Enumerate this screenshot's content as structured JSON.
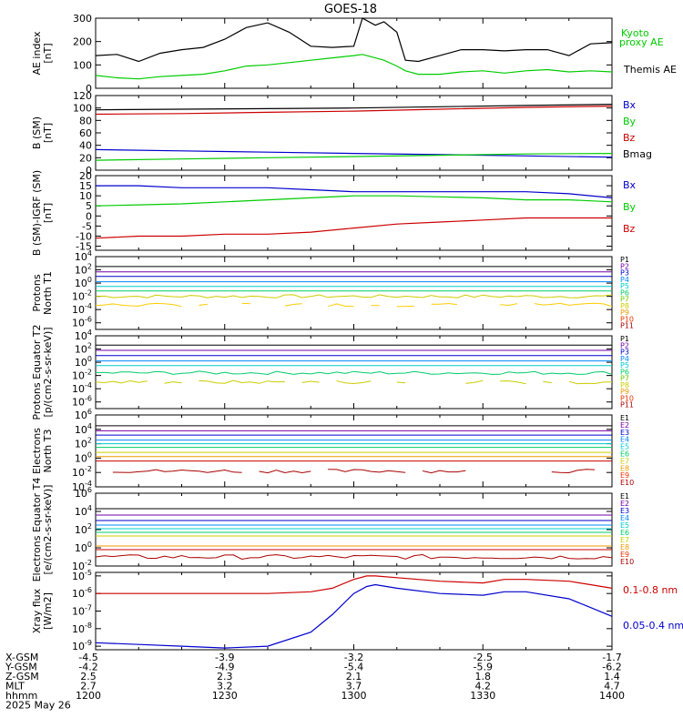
{
  "title": "GOES-18",
  "date_label": "2025 May 26",
  "footer": {
    "rows": [
      {
        "label": "X-GSM",
        "values": [
          "-4.5",
          "-3.9",
          "-3.2",
          "-2.5",
          "-1.7"
        ]
      },
      {
        "label": "Y-GSM",
        "values": [
          "-4.2",
          "-4.9",
          "-5.4",
          "-5.9",
          "-6.2"
        ]
      },
      {
        "label": "Z-GSM",
        "values": [
          "2.5",
          "2.3",
          "2.1",
          "1.8",
          "1.4"
        ]
      },
      {
        "label": "MLT",
        "values": [
          "2.7",
          "3.2",
          "3.7",
          "4.2",
          "4.7"
        ]
      },
      {
        "label": "hhmm",
        "values": [
          "1200",
          "1230",
          "1300",
          "1330",
          "1400"
        ]
      }
    ]
  },
  "chart_data": [
    {
      "type": "line",
      "ylabel": "AE index [nT]",
      "ylim": [
        0,
        300
      ],
      "yticks": [
        "0",
        "100",
        "200",
        "300"
      ],
      "legend": [
        {
          "label": "Kyoto",
          "color": "#00cc00"
        },
        {
          "label": "proxy AE",
          "color": "#00cc00"
        },
        {
          "label": "Themis AE",
          "color": "#000000"
        }
      ],
      "x_minutes": [
        0,
        5,
        10,
        15,
        20,
        25,
        30,
        35,
        40,
        45,
        50,
        55,
        60,
        62,
        65,
        67,
        70,
        72,
        75,
        80,
        85,
        90,
        95,
        100,
        105,
        110,
        115,
        120
      ],
      "series": [
        {
          "name": "Themis AE",
          "color": "#000000",
          "values": [
            140,
            145,
            115,
            150,
            165,
            175,
            210,
            260,
            280,
            240,
            180,
            175,
            180,
            300,
            270,
            285,
            240,
            120,
            115,
            140,
            165,
            165,
            160,
            165,
            165,
            140,
            190,
            195
          ]
        },
        {
          "name": "Kyoto proxy AE",
          "color": "#00cc00",
          "values": [
            55,
            45,
            40,
            50,
            55,
            60,
            75,
            95,
            100,
            110,
            120,
            130,
            140,
            145,
            130,
            120,
            95,
            75,
            60,
            60,
            70,
            75,
            65,
            75,
            80,
            70,
            75,
            70
          ]
        }
      ]
    },
    {
      "type": "line",
      "ylabel": "B (SM) [nT]",
      "ylim": [
        0,
        120
      ],
      "yticks": [
        "0",
        "20",
        "40",
        "60",
        "80",
        "100",
        "120"
      ],
      "legend": [
        {
          "label": "Bx",
          "color": "#0000cc"
        },
        {
          "label": "By",
          "color": "#00cc00"
        },
        {
          "label": "Bz",
          "color": "#cc0000"
        },
        {
          "label": "Bmag",
          "color": "#000000"
        }
      ],
      "x_minutes": [
        0,
        20,
        40,
        60,
        80,
        100,
        120
      ],
      "series": [
        {
          "name": "Bmag",
          "color": "#000000",
          "values": [
            97,
            98,
            99,
            100,
            102,
            104,
            106
          ]
        },
        {
          "name": "Bz",
          "color": "#cc0000",
          "values": [
            90,
            91,
            93,
            95,
            98,
            101,
            103
          ]
        },
        {
          "name": "Bx",
          "color": "#0000cc",
          "values": [
            33,
            31,
            29,
            27,
            25,
            23,
            21
          ]
        },
        {
          "name": "By",
          "color": "#00cc00",
          "values": [
            16,
            18,
            20,
            22,
            24,
            26,
            27
          ]
        }
      ]
    },
    {
      "type": "line",
      "ylabel": "B (SM)-IGRF (SM) [nT]",
      "ylim": [
        -17,
        20
      ],
      "yticks": [
        "-15",
        "-10",
        "-5",
        "0",
        "5",
        "10",
        "15",
        "20"
      ],
      "legend": [
        {
          "label": "Bx",
          "color": "#0000cc"
        },
        {
          "label": "By",
          "color": "#00cc00"
        },
        {
          "label": "Bz",
          "color": "#cc0000"
        }
      ],
      "x_minutes": [
        0,
        10,
        20,
        30,
        40,
        50,
        60,
        70,
        80,
        90,
        100,
        110,
        120
      ],
      "series": [
        {
          "name": "Bx",
          "color": "#0000cc",
          "values": [
            15,
            15,
            14,
            14,
            14,
            13,
            12,
            12,
            12,
            12,
            12,
            11,
            9
          ]
        },
        {
          "name": "By",
          "color": "#00cc00",
          "values": [
            5,
            5.5,
            6,
            7,
            8,
            9,
            10,
            10,
            9.5,
            9,
            8,
            8,
            7
          ]
        },
        {
          "name": "Bz",
          "color": "#cc0000",
          "values": [
            -11,
            -10,
            -10,
            -9,
            -9,
            -8,
            -6,
            -4,
            -3,
            -2,
            -1,
            -1,
            -1
          ]
        }
      ]
    },
    {
      "type": "line",
      "ylabel": "Protons North T1",
      "yscale": "log",
      "ylim_exp": [
        -7,
        4
      ],
      "yticks": [
        "10-6",
        "10-4",
        "10-2",
        "100",
        "102",
        "104"
      ],
      "legend": [
        {
          "label": "P1",
          "color": "#000000"
        },
        {
          "label": "P2",
          "color": "#7700aa"
        },
        {
          "label": "P3",
          "color": "#0000cc"
        },
        {
          "label": "P4",
          "color": "#0088ff"
        },
        {
          "label": "P5",
          "color": "#00cccc"
        },
        {
          "label": "P6",
          "color": "#00cc66"
        },
        {
          "label": "P7",
          "color": "#66cc00"
        },
        {
          "label": "P8",
          "color": "#cccc00"
        },
        {
          "label": "P9",
          "color": "#ee9900"
        },
        {
          "label": "P10",
          "color": "#ee3300"
        },
        {
          "label": "P11",
          "color": "#aa0000"
        }
      ],
      "series_log": [
        {
          "name": "P1",
          "color": "#000000",
          "log": 2.5
        },
        {
          "name": "P2",
          "color": "#7700aa",
          "log": 1.7
        },
        {
          "name": "P3",
          "color": "#0000cc",
          "log": 1.0
        },
        {
          "name": "P4",
          "color": "#0088ff",
          "log": 0.2
        },
        {
          "name": "P5",
          "color": "#00cccc",
          "log": -0.5
        },
        {
          "name": "P6",
          "color": "#00cc66",
          "log": -1.2
        },
        {
          "name": "P7",
          "color": "#cccc00",
          "log": -2.0,
          "noisy": true
        },
        {
          "name": "P8",
          "color": "#ffcc00",
          "log": -3.3,
          "noisy": true,
          "gaps": true
        }
      ]
    },
    {
      "type": "line",
      "ylabel": "Protons Equator T2 [p/(cm2-s-sr-keV)]",
      "yscale": "log",
      "ylim_exp": [
        -7,
        4
      ],
      "yticks": [
        "10-6",
        "10-4",
        "10-2",
        "100",
        "102",
        "104"
      ],
      "legend": [
        {
          "label": "P1",
          "color": "#000000"
        },
        {
          "label": "P2",
          "color": "#7700aa"
        },
        {
          "label": "P3",
          "color": "#0000cc"
        },
        {
          "label": "P4",
          "color": "#0088ff"
        },
        {
          "label": "P5",
          "color": "#00cccc"
        },
        {
          "label": "P6",
          "color": "#00cc66"
        },
        {
          "label": "P7",
          "color": "#66cc00"
        },
        {
          "label": "P8",
          "color": "#cccc00"
        },
        {
          "label": "P9",
          "color": "#ee9900"
        },
        {
          "label": "P10",
          "color": "#ee3300"
        },
        {
          "label": "P11",
          "color": "#aa0000"
        }
      ],
      "series_log": [
        {
          "name": "P1",
          "color": "#000000",
          "log": 2.6
        },
        {
          "name": "P2",
          "color": "#7700aa",
          "log": 1.8
        },
        {
          "name": "P3",
          "color": "#0000cc",
          "log": 1.0
        },
        {
          "name": "P4",
          "color": "#0088ff",
          "log": 0.2
        },
        {
          "name": "P5",
          "color": "#00cccc",
          "log": -0.5
        },
        {
          "name": "P6",
          "color": "#00cc66",
          "log": -1.6,
          "noisy": true
        },
        {
          "name": "P7",
          "color": "#cccc00",
          "log": -3.0,
          "noisy": true,
          "gaps": true
        }
      ]
    },
    {
      "type": "line",
      "ylabel": "Electrons North T3",
      "yscale": "log",
      "ylim_exp": [
        -4,
        6
      ],
      "yticks": [
        "10-4",
        "10-2",
        "100",
        "102",
        "104",
        "106"
      ],
      "legend": [
        {
          "label": "E1",
          "color": "#000000"
        },
        {
          "label": "E2",
          "color": "#7700aa"
        },
        {
          "label": "E3",
          "color": "#0000cc"
        },
        {
          "label": "E4",
          "color": "#0088ff"
        },
        {
          "label": "E5",
          "color": "#00cccc"
        },
        {
          "label": "E6",
          "color": "#00cc66"
        },
        {
          "label": "E7",
          "color": "#cccc00"
        },
        {
          "label": "E8",
          "color": "#ee9900"
        },
        {
          "label": "E9",
          "color": "#ee3300"
        },
        {
          "label": "E10",
          "color": "#aa0000"
        }
      ],
      "series_log": [
        {
          "name": "E1",
          "color": "#000000",
          "log": 4.5
        },
        {
          "name": "E2",
          "color": "#7700aa",
          "log": 3.8
        },
        {
          "name": "E3",
          "color": "#0000cc",
          "log": 3.2
        },
        {
          "name": "E4",
          "color": "#0088ff",
          "log": 2.5
        },
        {
          "name": "E5",
          "color": "#00cccc",
          "log": 2.0
        },
        {
          "name": "E6",
          "color": "#00cc66",
          "log": 1.5
        },
        {
          "name": "E7",
          "color": "#cccc00",
          "log": 0.8
        },
        {
          "name": "E8",
          "color": "#ee9900",
          "log": 0.2
        },
        {
          "name": "E9",
          "color": "#cc0000",
          "log": -0.4
        },
        {
          "name": "E10",
          "color": "#aa0000",
          "log": -1.8,
          "noisy": true,
          "gaps": true
        }
      ]
    },
    {
      "type": "line",
      "ylabel": "Electrons Equator T4 [e/(cm2-s-sr-keV)]",
      "yscale": "log",
      "ylim_exp": [
        -2,
        6
      ],
      "yticks": [
        "10-2",
        "100",
        "102",
        "104",
        "106"
      ],
      "legend": [
        {
          "label": "E1",
          "color": "#000000"
        },
        {
          "label": "E2",
          "color": "#7700aa"
        },
        {
          "label": "E3",
          "color": "#0000cc"
        },
        {
          "label": "E4",
          "color": "#0088ff"
        },
        {
          "label": "E5",
          "color": "#00cccc"
        },
        {
          "label": "E6",
          "color": "#00cc66"
        },
        {
          "label": "E7",
          "color": "#cccc00"
        },
        {
          "label": "E8",
          "color": "#ee9900"
        },
        {
          "label": "E9",
          "color": "#ee3300"
        },
        {
          "label": "E10",
          "color": "#aa0000"
        }
      ],
      "series_log": [
        {
          "name": "E1",
          "color": "#000000",
          "log": 4.3
        },
        {
          "name": "E2",
          "color": "#7700aa",
          "log": 3.6
        },
        {
          "name": "E3",
          "color": "#0000cc",
          "log": 3.0
        },
        {
          "name": "E4",
          "color": "#0088ff",
          "log": 2.5
        },
        {
          "name": "E5",
          "color": "#00cccc",
          "log": 2.1
        },
        {
          "name": "E6",
          "color": "#00cc66",
          "log": 1.7
        },
        {
          "name": "E7",
          "color": "#cccc00",
          "log": 1.3
        },
        {
          "name": "E8",
          "color": "#ee9900",
          "log": 0.2
        },
        {
          "name": "E9",
          "color": "#cc0000",
          "log": -0.2
        },
        {
          "name": "E10",
          "color": "#aa0000",
          "log": -1.0,
          "noisy": true
        }
      ]
    },
    {
      "type": "line",
      "ylabel": "Xray flux [W/m2]",
      "yscale": "log",
      "ylim_exp": [
        -9.2,
        -4.8
      ],
      "yticks": [
        "10-9",
        "10-8",
        "10-7",
        "10-6",
        "10-5"
      ],
      "legend": [
        {
          "label": "0.1-0.8 nm",
          "color": "#cc0000"
        },
        {
          "label": "0.05-0.4 nm",
          "color": "#0000cc"
        }
      ],
      "x_minutes": [
        0,
        10,
        20,
        30,
        40,
        50,
        55,
        60,
        63,
        65,
        70,
        80,
        90,
        95,
        100,
        110,
        115,
        120
      ],
      "series": [
        {
          "name": "0.1-0.8 nm",
          "color": "#cc0000",
          "values": [
            -6.0,
            -6.0,
            -6.0,
            -6.0,
            -6.0,
            -5.9,
            -5.7,
            -5.2,
            -5.0,
            -5.0,
            -5.1,
            -5.3,
            -5.4,
            -5.2,
            -5.2,
            -5.3,
            -5.5,
            -5.7
          ]
        },
        {
          "name": "0.05-0.4 nm",
          "color": "#0000cc",
          "values": [
            -8.8,
            -8.9,
            -9.0,
            -9.1,
            -9.0,
            -8.2,
            -7.2,
            -6.0,
            -5.6,
            -5.5,
            -5.7,
            -6.0,
            -6.1,
            -5.9,
            -5.9,
            -6.3,
            -6.8,
            -7.3
          ]
        }
      ]
    }
  ]
}
